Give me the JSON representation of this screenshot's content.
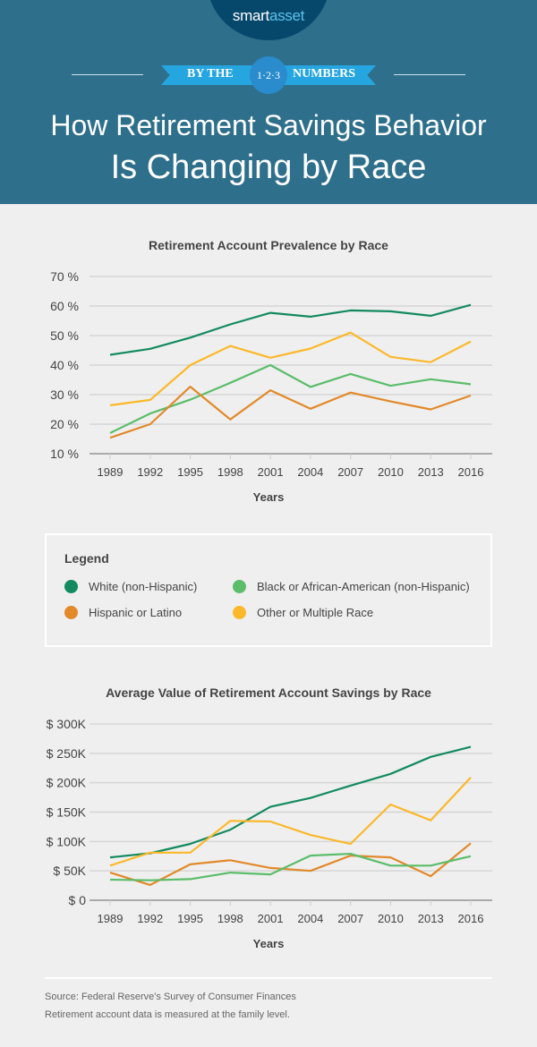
{
  "header": {
    "logo_left": "smart",
    "logo_right": "asset",
    "ribbon_left": "BY THE",
    "ribbon_center": "1·2·3",
    "ribbon_right": "NUMBERS",
    "title_line1": "How Retirement Savings Behavior",
    "title_line2": "Is Changing by Race"
  },
  "colors": {
    "header_bg": "#2e6f8c",
    "white": "#138a5f",
    "black": "#5bbd6a",
    "hispanic": "#e2892a",
    "other": "#fbb82a"
  },
  "legend": {
    "title": "Legend",
    "items": [
      {
        "label": "White (non-Hispanic)",
        "color": "#138a5f"
      },
      {
        "label": "Black or African-American (non-Hispanic)",
        "color": "#5bbd6a"
      },
      {
        "label": "Hispanic or Latino",
        "color": "#e2892a"
      },
      {
        "label": "Other or Multiple Race",
        "color": "#fbb82a"
      }
    ]
  },
  "chart_data": [
    {
      "type": "line",
      "title": "Retirement Account Prevalence by Race",
      "xlabel": "Years",
      "ylabel": "",
      "ylim": [
        10,
        70
      ],
      "yticks": [
        "10 %",
        "20 %",
        "30 %",
        "40 %",
        "50 %",
        "60 %",
        "70 %"
      ],
      "ytick_values": [
        10,
        20,
        30,
        40,
        50,
        60,
        70
      ],
      "categories": [
        "1989",
        "1992",
        "1995",
        "1998",
        "2001",
        "2004",
        "2007",
        "2010",
        "2013",
        "2016"
      ],
      "grid": true,
      "series": [
        {
          "name": "White (non-Hispanic)",
          "color": "#138a5f",
          "values": [
            43.5,
            45.5,
            49.3,
            53.8,
            57.7,
            56.4,
            58.5,
            58.2,
            56.7,
            60.4
          ]
        },
        {
          "name": "Other or Multiple Race",
          "color": "#fbb82a",
          "values": [
            26.4,
            28.2,
            40,
            46.5,
            42.5,
            45.6,
            51,
            42.8,
            41,
            48
          ]
        },
        {
          "name": "Black or African-American (non-Hispanic)",
          "color": "#5bbd6a",
          "values": [
            17,
            23.6,
            28.3,
            34,
            40,
            32.6,
            37,
            33,
            35.2,
            33.5
          ]
        },
        {
          "name": "Hispanic or Latino",
          "color": "#e2892a",
          "values": [
            15.4,
            20,
            32.7,
            21.6,
            31.5,
            25.2,
            30.7,
            27.7,
            25,
            29.7
          ]
        }
      ]
    },
    {
      "type": "line",
      "title": "Average Value of Retirement Account Savings by Race",
      "xlabel": "Years",
      "ylabel": "",
      "ylim": [
        0,
        300000
      ],
      "yticks": [
        "$  0",
        "$  50K",
        "$  100K",
        "$  150K",
        "$  200K",
        "$  250K",
        "$  300K"
      ],
      "ytick_values": [
        0,
        50000,
        100000,
        150000,
        200000,
        250000,
        300000
      ],
      "categories": [
        "1989",
        "1992",
        "1995",
        "1998",
        "2001",
        "2004",
        "2007",
        "2010",
        "2013",
        "2016"
      ],
      "grid": true,
      "series": [
        {
          "name": "White (non-Hispanic)",
          "color": "#138a5f",
          "values": [
            73000,
            80000,
            96000,
            120000,
            159000,
            174000,
            195000,
            215000,
            244000,
            261000
          ]
        },
        {
          "name": "Other or Multiple Race",
          "color": "#fbb82a",
          "values": [
            59000,
            81000,
            81000,
            135000,
            134000,
            111000,
            96000,
            163000,
            136000,
            209000
          ]
        },
        {
          "name": "Hispanic or Latino",
          "color": "#e2892a",
          "values": [
            47000,
            26000,
            61000,
            68000,
            55000,
            50000,
            76000,
            73000,
            41000,
            97000
          ]
        },
        {
          "name": "Black or African-American (non-Hispanic)",
          "color": "#5bbd6a",
          "values": [
            35000,
            34000,
            36000,
            47000,
            44000,
            76000,
            79000,
            59000,
            59000,
            75000
          ]
        }
      ]
    }
  ],
  "footer": {
    "source": "Source: Federal Reserve's Survey of Consumer Finances",
    "note": "Retirement account data is measured at the family level."
  }
}
